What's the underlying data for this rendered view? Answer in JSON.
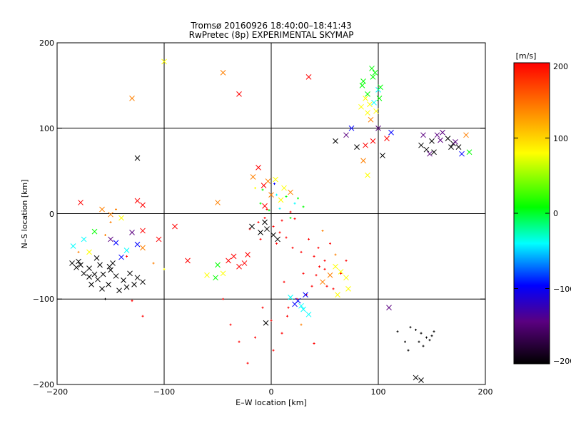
{
  "chart_data": {
    "type": "scatter",
    "title": "Tromsø 20160926 18:40:00–18:41:43",
    "subtitle": "RwPretec (8p) EXPERIMENTAL SKYMAP",
    "xlabel": "E–W location [km]",
    "ylabel": "N–S location [km]",
    "xlim": [
      -200,
      200
    ],
    "ylim": [
      -200,
      200
    ],
    "x_ticks": [
      -200,
      -100,
      0,
      100,
      200
    ],
    "y_ticks": [
      -200,
      -100,
      0,
      100,
      200
    ],
    "x_tick_labels": [
      "−200",
      "−100",
      "0",
      "100",
      "200"
    ],
    "y_tick_labels": [
      "−200",
      "−100",
      "0",
      "100",
      "200"
    ],
    "grid": true,
    "colorbar": {
      "label": "[m/s]",
      "range": [
        -200,
        200
      ],
      "ticks": [
        200,
        100,
        0,
        -100,
        -200
      ],
      "tick_labels": [
        "200",
        "100",
        "0",
        "−100",
        "−200"
      ],
      "colors": [
        "#000000",
        "#5a0080",
        "#0000ff",
        "#00ffff",
        "#00ff00",
        "#ffff00",
        "#ff8000",
        "#ff0000"
      ]
    },
    "markers": {
      "dot": "+",
      "cross": "x"
    },
    "series": [
      {
        "x": [
          -165,
          -162,
          -160,
          -157,
          -163,
          -168,
          -151,
          -170,
          -152
        ],
        "y": [
          -71,
          -77,
          -60,
          -71,
          -52,
          -83,
          -62,
          -74,
          -83
        ],
        "v": [
          -200,
          -190,
          -210,
          -195,
          -200,
          -185,
          -205,
          -200,
          -190
        ],
        "m": "cross"
      },
      {
        "x": [
          -150,
          -148,
          -145,
          -138,
          -132,
          -128,
          -125,
          -120,
          -142,
          -135,
          -178,
          -182,
          -175,
          -170,
          -186,
          -158,
          -180
        ],
        "y": [
          -66,
          -58,
          -73,
          -78,
          -70,
          -83,
          -75,
          -80,
          -90,
          -86,
          -60,
          -63,
          -70,
          -64,
          -58,
          -88,
          -56
        ],
        "v": [
          -200,
          -198,
          -205,
          -200,
          -195,
          -200,
          -210,
          -190,
          -200,
          -200,
          -205,
          -195,
          -200,
          -210,
          -200,
          -200,
          -195
        ],
        "m": "cross"
      },
      {
        "x": [
          -185,
          -170,
          -150,
          -145,
          -135,
          -125,
          -140,
          -165,
          -130,
          -175
        ],
        "y": [
          -38,
          -45,
          -30,
          -34,
          -43,
          -36,
          -51,
          -21,
          -22,
          -30
        ],
        "v": [
          -30,
          60,
          -120,
          -100,
          -50,
          -80,
          -110,
          20,
          -130,
          -20
        ],
        "m": "cross"
      },
      {
        "x": [
          -178,
          -158,
          -125,
          -120,
          -105,
          -90,
          -78,
          -50,
          -150,
          -140
        ],
        "y": [
          13,
          5,
          15,
          -20,
          -30,
          -15,
          -55,
          13,
          -1,
          -5
        ],
        "v": [
          180,
          170,
          190,
          200,
          200,
          175,
          180,
          150,
          120,
          90
        ],
        "m": "cross"
      },
      {
        "x": [
          -150,
          -145,
          -155,
          -135,
          -110,
          -100,
          -180,
          -120,
          -155,
          -130
        ],
        "y": [
          -10,
          5,
          -25,
          -50,
          -58,
          -65,
          -45,
          -120,
          -100,
          -102
        ],
        "v": [
          170,
          120,
          140,
          180,
          160,
          100,
          150,
          190,
          -200,
          180
        ],
        "m": "dot"
      },
      {
        "x": [
          -45,
          -125,
          -120,
          -60,
          -100,
          -30
        ],
        "y": [
          165,
          65,
          10,
          -72,
          178,
          140
        ],
        "v": [
          120,
          -200,
          190,
          70,
          60,
          200
        ],
        "m": "cross"
      },
      {
        "x": [
          -12,
          -3,
          -17,
          -7,
          0,
          4,
          12,
          18,
          9,
          -6
        ],
        "y": [
          54,
          38,
          43,
          33,
          22,
          40,
          30,
          25,
          16,
          9
        ],
        "v": [
          210,
          170,
          150,
          180,
          130,
          100,
          60,
          120,
          90,
          190
        ],
        "m": "cross"
      },
      {
        "x": [
          -10,
          -2,
          5,
          14,
          22,
          30,
          -8,
          8,
          18,
          25,
          3,
          -15
        ],
        "y": [
          12,
          4,
          22,
          20,
          12,
          8,
          28,
          6,
          -5,
          18,
          35,
          30
        ],
        "v": [
          10,
          0,
          -20,
          20,
          -5,
          30,
          40,
          -40,
          10,
          0,
          -60,
          60
        ],
        "m": "dot"
      },
      {
        "x": [
          -6,
          2,
          8,
          -12,
          14,
          22,
          28,
          35,
          -4,
          10,
          18,
          40,
          45,
          30,
          20,
          5,
          -10,
          -20,
          12,
          38,
          42,
          50,
          33,
          24,
          16
        ],
        "y": [
          -5,
          -15,
          -22,
          -10,
          -28,
          -6,
          -45,
          -30,
          5,
          -8,
          2,
          -50,
          -62,
          -70,
          -40,
          -35,
          -30,
          -18,
          -80,
          -85,
          -72,
          -55,
          -95,
          -100,
          -110
        ],
        "v": [
          200,
          190,
          210,
          180,
          200,
          195,
          205,
          190,
          180,
          200,
          175,
          210,
          200,
          190,
          200,
          195,
          185,
          180,
          200,
          210,
          190,
          200,
          195,
          200,
          205
        ],
        "m": "dot"
      },
      {
        "x": [
          55,
          60,
          50,
          65,
          48,
          52,
          58,
          70,
          44
        ],
        "y": [
          -35,
          -48,
          -65,
          -70,
          -20,
          -85,
          -88,
          -55,
          -40
        ],
        "v": [
          190,
          170,
          200,
          180,
          160,
          200,
          190,
          175,
          200
        ],
        "m": "dot"
      },
      {
        "x": [
          -4,
          -10,
          2,
          -18,
          -6,
          6
        ],
        "y": [
          -18,
          -22,
          -25,
          -15,
          -10,
          -30
        ],
        "v": [
          -200,
          -195,
          -205,
          -200,
          -210,
          -200
        ],
        "m": "cross"
      },
      {
        "x": [
          25,
          28,
          30,
          22,
          18,
          35,
          32
        ],
        "y": [
          -102,
          -108,
          -112,
          -106,
          -98,
          -118,
          -95
        ],
        "v": [
          -60,
          -50,
          -40,
          -70,
          -30,
          -55,
          -80
        ],
        "m": "cross"
      },
      {
        "x": [
          -50,
          -45,
          -52,
          -40,
          -35,
          -30,
          -25,
          -22
        ],
        "y": [
          -60,
          -70,
          -75,
          -55,
          -50,
          -62,
          -58,
          -48
        ],
        "v": [
          40,
          60,
          20,
          190,
          200,
          180,
          200,
          190
        ],
        "m": "cross"
      },
      {
        "x": [
          65,
          70,
          55,
          60,
          72,
          48,
          62
        ],
        "y": [
          -68,
          -75,
          -72,
          -62,
          -88,
          -80,
          -95
        ],
        "v": [
          100,
          80,
          120,
          90,
          110,
          140,
          100
        ],
        "m": "cross"
      },
      {
        "x": [
          -38,
          -30,
          -8,
          10,
          2,
          -45,
          -22,
          0,
          -15,
          28,
          40,
          15
        ],
        "y": [
          -130,
          -150,
          -110,
          -140,
          -160,
          -100,
          -175,
          -125,
          -145,
          -130,
          -152,
          -120
        ],
        "v": [
          200,
          190,
          180,
          200,
          210,
          195,
          180,
          200,
          190,
          170,
          200,
          185
        ],
        "m": "dot"
      },
      {
        "x": [
          85,
          90,
          95,
          100,
          88,
          92,
          98,
          94,
          86,
          102,
          96,
          90,
          84,
          93,
          101,
          97
        ],
        "y": [
          150,
          140,
          160,
          145,
          135,
          128,
          120,
          170,
          155,
          148,
          130,
          118,
          125,
          110,
          135,
          165
        ],
        "v": [
          10,
          20,
          0,
          -10,
          60,
          80,
          100,
          30,
          50,
          40,
          -20,
          90,
          70,
          120,
          10,
          0
        ],
        "m": "cross"
      },
      {
        "x": [
          60,
          70,
          75,
          80,
          88,
          95,
          100,
          104,
          108,
          112,
          86
        ],
        "y": [
          85,
          92,
          100,
          78,
          80,
          85,
          100,
          68,
          88,
          95,
          62
        ],
        "v": [
          -200,
          -150,
          -100,
          -180,
          190,
          200,
          -120,
          -200,
          180,
          -60,
          160
        ],
        "m": "cross"
      },
      {
        "x": [
          140,
          145,
          150,
          155,
          160,
          165,
          170,
          175,
          142,
          148,
          152,
          158,
          168,
          172,
          178,
          185
        ],
        "y": [
          80,
          75,
          85,
          92,
          95,
          88,
          82,
          78,
          92,
          70,
          72,
          86,
          78,
          84,
          70,
          72
        ],
        "v": [
          -200,
          -180,
          -195,
          -160,
          -170,
          -200,
          -190,
          -185,
          -150,
          -140,
          -200,
          -130,
          -175,
          -160,
          -60,
          30
        ],
        "m": "cross"
      },
      {
        "x": [
          140,
          135,
          145,
          148,
          130,
          152,
          125,
          138,
          142,
          150,
          118,
          128
        ],
        "y": [
          -140,
          -136,
          -145,
          -148,
          -133,
          -138,
          -150,
          -150,
          -155,
          -143,
          -138,
          -160
        ],
        "v": [
          -200,
          -200,
          -200,
          -200,
          -200,
          -200,
          -200,
          -200,
          -200,
          -200,
          -200,
          -200
        ],
        "m": "dot"
      },
      {
        "x": [
          -120,
          182,
          140,
          -5,
          135,
          35,
          90,
          110,
          -130
        ],
        "y": [
          -40,
          92,
          -195,
          -128,
          -192,
          160,
          45,
          -110,
          135
        ],
        "v": [
          120,
          140,
          -200,
          -200,
          -200,
          190,
          60,
          -150,
          160
        ],
        "m": "cross"
      }
    ]
  }
}
